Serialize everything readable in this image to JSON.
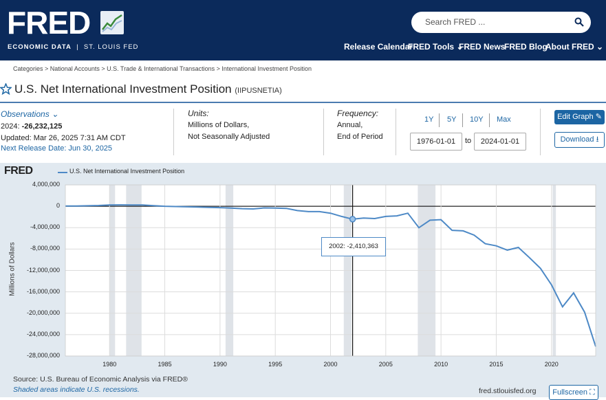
{
  "header": {
    "logo": "FRED",
    "tagline_left": "ECONOMIC DATA",
    "tagline_sep": "|",
    "tagline_right": "ST. LOUIS FED",
    "search_placeholder": "Search FRED ...",
    "nav": [
      "Release Calendar",
      "FRED Tools",
      "FRED News",
      "FRED Blog",
      "About FRED"
    ]
  },
  "breadcrumb": "Categories > National Accounts > U.S. Trade & International Transactions > International Investment Position",
  "series": {
    "title": "U.S. Net International Investment Position",
    "id": "(IIPUSNETIA)"
  },
  "observations": {
    "link": "Observations",
    "latest_label": "2024:",
    "latest_value": "-26,232,125",
    "updated": "Updated: Mar 26, 2025 7:31 AM CDT",
    "next_release": "Next Release Date: Jun 30, 2025"
  },
  "units": {
    "label": "Units:",
    "line1": "Millions of Dollars,",
    "line2": "Not Seasonally Adjusted"
  },
  "frequency": {
    "label": "Frequency:",
    "line1": "Annual,",
    "line2": "End of Period"
  },
  "range": {
    "buttons": [
      "1Y",
      "5Y",
      "10Y",
      "Max"
    ],
    "start": "1976-01-01",
    "to": "to",
    "end": "2024-01-01"
  },
  "actions": {
    "edit": "Edit Graph",
    "download": "Download"
  },
  "graph": {
    "brand": "FRED",
    "legend": "U.S. Net International Investment Position",
    "ylabel": "Millions of Dollars",
    "tooltip_year": "2002:",
    "tooltip_value": "-2,410,363",
    "source": "Source: U.S. Bureau of Economic Analysis via FRED®",
    "shaded_note": "Shaded areas indicate U.S. recessions.",
    "url": "fred.stlouisfed.org",
    "fullscreen": "Fullscreen"
  },
  "colors": {
    "navy": "#0b2a5b",
    "accent": "#1c65a3",
    "line": "#4d89c6"
  },
  "chart_data": {
    "type": "line",
    "title": "U.S. Net International Investment Position",
    "xlabel": "",
    "ylabel": "Millions of Dollars",
    "xlim": [
      1976,
      2024
    ],
    "ylim": [
      -28000000,
      4000000
    ],
    "y_ticks": [
      4000000,
      0,
      -4000000,
      -8000000,
      -12000000,
      -16000000,
      -20000000,
      -24000000,
      -28000000
    ],
    "y_tick_labels": [
      "4,000,000",
      "0",
      "-4,000,000",
      "-8,000,000",
      "-12,000,000",
      "-16,000,000",
      "-20,000,000",
      "-24,000,000",
      "-28,000,000"
    ],
    "x_ticks": [
      1980,
      1985,
      1990,
      1995,
      2000,
      2005,
      2010,
      2015,
      2020
    ],
    "recessions": [
      [
        1980.0,
        1980.5
      ],
      [
        1981.5,
        1982.9
      ],
      [
        1990.5,
        1991.2
      ],
      [
        2001.2,
        2001.9
      ],
      [
        2007.9,
        2009.5
      ],
      [
        2020.1,
        2020.4
      ]
    ],
    "x": [
      1976,
      1977,
      1978,
      1979,
      1980,
      1981,
      1982,
      1983,
      1984,
      1985,
      1986,
      1987,
      1988,
      1989,
      1990,
      1991,
      1992,
      1993,
      1994,
      1995,
      1996,
      1997,
      1998,
      1999,
      2000,
      2001,
      2002,
      2003,
      2004,
      2005,
      2006,
      2007,
      2008,
      2009,
      2010,
      2011,
      2012,
      2013,
      2014,
      2015,
      2016,
      2017,
      2018,
      2019,
      2020,
      2021,
      2022,
      2023,
      2024
    ],
    "values": [
      40000,
      60000,
      90000,
      150000,
      250000,
      260000,
      250000,
      240000,
      100000,
      0,
      -50000,
      -100000,
      -150000,
      -200000,
      -250000,
      -350000,
      -450000,
      -500000,
      -300000,
      -350000,
      -400000,
      -800000,
      -1000000,
      -1000000,
      -1300000,
      -1900000,
      -2410363,
      -2200000,
      -2300000,
      -1900000,
      -1800000,
      -1300000,
      -4000000,
      -2600000,
      -2500000,
      -4500000,
      -4600000,
      -5400000,
      -7000000,
      -7400000,
      -8200000,
      -7700000,
      -9600000,
      -11600000,
      -14700000,
      -18800000,
      -16200000,
      -19800000,
      -26232125
    ],
    "highlight": {
      "x": 2002,
      "y": -2410363
    },
    "series": [
      {
        "name": "U.S. Net International Investment Position"
      }
    ]
  }
}
